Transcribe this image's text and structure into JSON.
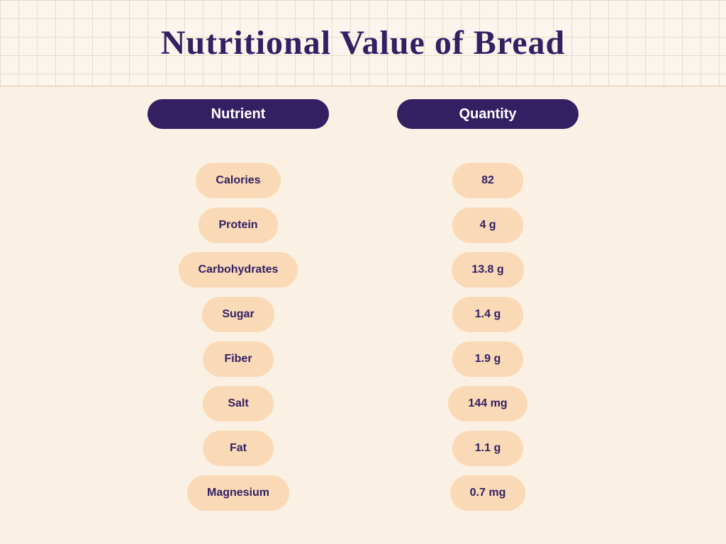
{
  "title": "Nutritional Value of Bread",
  "columns": {
    "nutrient": "Nutrient",
    "quantity": "Quantity"
  },
  "rows": [
    {
      "nutrient": "Calories",
      "quantity": "82"
    },
    {
      "nutrient": "Protein",
      "quantity": "4 g"
    },
    {
      "nutrient": "Carbohydrates",
      "quantity": "13.8 g"
    },
    {
      "nutrient": "Sugar",
      "quantity": "1.4 g"
    },
    {
      "nutrient": "Fiber",
      "quantity": "1.9 g"
    },
    {
      "nutrient": "Salt",
      "quantity": "144 mg"
    },
    {
      "nutrient": "Fat",
      "quantity": "1.1 g"
    },
    {
      "nutrient": "Magnesium",
      "quantity": "0.7 mg"
    }
  ],
  "style": {
    "title_color": "#322063",
    "title_fontsize": 48,
    "header_bg": "#322063",
    "header_text": "#ffffff",
    "pill_bg": "#fad9b6",
    "pill_text": "#322063",
    "body_bg": "#fbf0e4",
    "grid_bg": "#fbf5ee",
    "grid_line": "#e8dcc8",
    "pill_fontsize": 16,
    "header_fontsize": 20
  }
}
